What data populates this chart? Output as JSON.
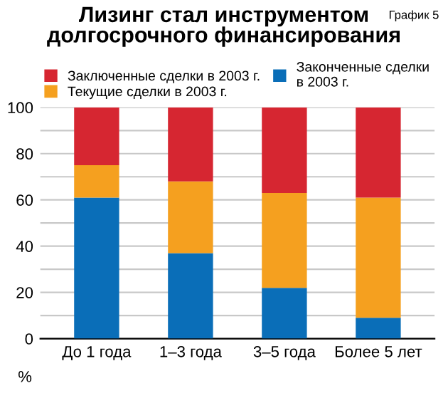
{
  "chart_data": {
    "type": "bar",
    "stacked": true,
    "title": "Лизинг стал инструментом\nдолгосрочного финансирования",
    "ylabel": "%",
    "annotations": [
      "График 5"
    ],
    "categories": [
      "До 1 года",
      "1–3 года",
      "3–5 года",
      "Более 5 лет"
    ],
    "series": [
      {
        "name": "Законченные сделки\nв 2003 г.",
        "color": "#0a6eb8",
        "values": [
          61,
          37,
          22,
          9
        ]
      },
      {
        "name": "Текущие сделки в 2003 г.",
        "color": "#f5a01f",
        "values": [
          14,
          31,
          41,
          52
        ]
      },
      {
        "name": "Заключенные сделки в 2003 г.",
        "color": "#d62631",
        "values": [
          25,
          32,
          37,
          39
        ]
      }
    ],
    "ylim": [
      0,
      100
    ],
    "yticks": [
      0,
      {
        "value": 10,
        "label": null
      },
      20,
      {
        "value": 30,
        "label": null
      },
      40,
      {
        "value": 50,
        "label": null
      },
      60,
      {
        "value": 70,
        "label": null
      },
      80,
      {
        "value": 90,
        "label": null
      },
      100
    ],
    "grid": "y",
    "legend": "top"
  }
}
